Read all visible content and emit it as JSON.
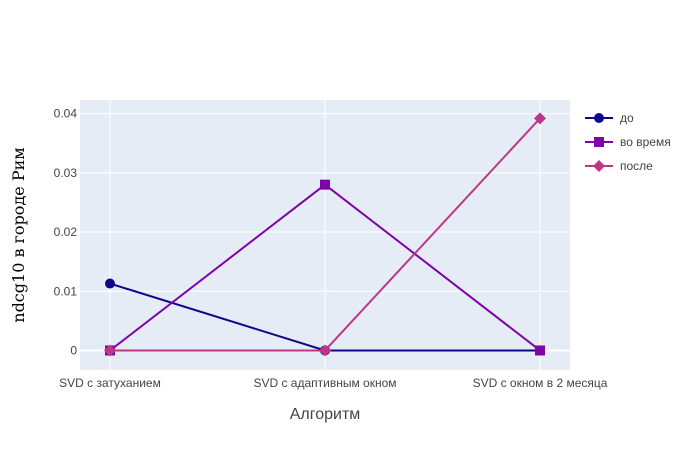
{
  "chart_data": {
    "type": "line",
    "title": "",
    "xlabel": "Алгоритм",
    "ylabel": "ndcg10 в городе Рим",
    "categories": [
      "SVD с затуханием",
      "SVD с адаптивным окном",
      "SVD с окном в 2 месяца"
    ],
    "ylim": [
      -0.0033,
      0.0423
    ],
    "yticks": [
      0,
      0.01,
      0.02,
      0.03,
      0.04
    ],
    "ytick_labels": [
      "0",
      "0.01",
      "0.02",
      "0.03",
      "0.04"
    ],
    "grid": true,
    "legend_position": "top-right",
    "series": [
      {
        "name": "до",
        "color": "#0d0887",
        "marker": "circle",
        "values": [
          0.0113,
          0,
          0
        ]
      },
      {
        "name": "во время",
        "color": "#7e03a8",
        "marker": "square",
        "values": [
          0,
          0.028,
          0
        ]
      },
      {
        "name": "после",
        "color": "#bd3786",
        "marker": "diamond",
        "values": [
          0,
          0,
          0.0392
        ]
      }
    ]
  }
}
